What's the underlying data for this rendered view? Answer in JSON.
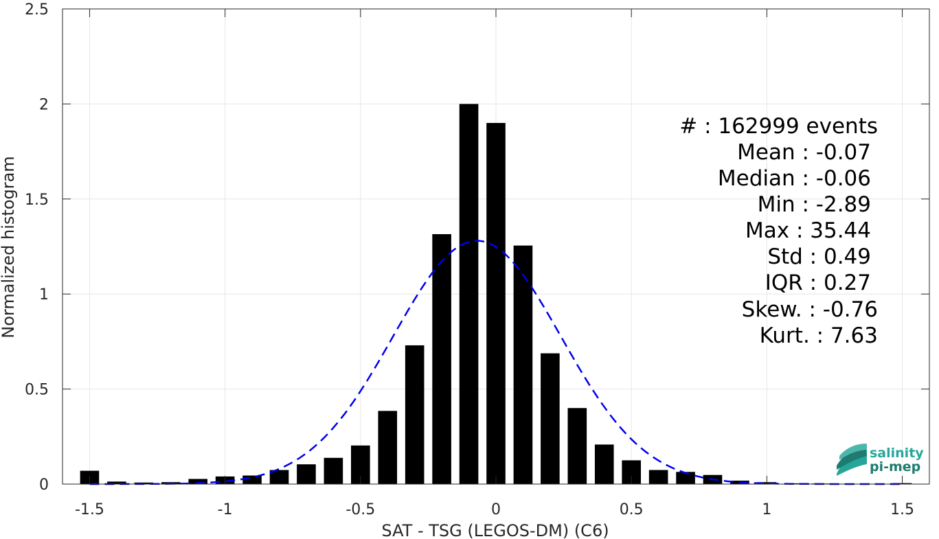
{
  "chart_data": {
    "type": "bar",
    "xlabel": "SAT - TSG (LEGOS-DM) (C6)",
    "ylabel": "Normalized histogram",
    "xlim": [
      -1.6,
      1.6
    ],
    "ylim": [
      0,
      2.5
    ],
    "xticks": [
      -1.5,
      -1,
      -0.5,
      0,
      0.5,
      1,
      1.5
    ],
    "xtick_labels": [
      "-1.5",
      "-1",
      "-0.5",
      "0",
      "0.5",
      "1",
      "1.5"
    ],
    "yticks": [
      0,
      0.5,
      1,
      1.5,
      2,
      2.5
    ],
    "ytick_labels": [
      "0",
      "0.5",
      "1",
      "1.5",
      "2",
      "2.5"
    ],
    "grid": true,
    "bar_color": "#000000",
    "bar_width": 0.07,
    "bars": {
      "x": [
        -1.5,
        -1.4,
        -1.3,
        -1.2,
        -1.1,
        -1.0,
        -0.9,
        -0.8,
        -0.7,
        -0.6,
        -0.5,
        -0.4,
        -0.3,
        -0.2,
        -0.1,
        0.0,
        0.1,
        0.2,
        0.3,
        0.4,
        0.5,
        0.6,
        0.7,
        0.8,
        0.9,
        1.0,
        1.1,
        1.2,
        1.3,
        1.4,
        1.5
      ],
      "values": [
        0.07,
        0.013,
        0.008,
        0.01,
        0.027,
        0.04,
        0.045,
        0.074,
        0.104,
        0.138,
        0.203,
        0.385,
        0.73,
        1.315,
        2.0,
        1.9,
        1.255,
        0.688,
        0.4,
        0.208,
        0.125,
        0.074,
        0.064,
        0.048,
        0.018,
        0.01,
        0.004,
        0.003,
        0.002,
        0.002,
        0.005
      ]
    },
    "fit_curve": {
      "type": "gaussian",
      "style": "dashed",
      "color": "#0000ee",
      "mean": -0.07,
      "std": 0.31,
      "peak": 1.28,
      "x_range": [
        -1.5,
        1.5
      ]
    },
    "annotation": [
      "#  : 162999 events",
      "Mean : -0.07",
      "Median : -0.06",
      "Min : -2.89",
      "Max : 35.44",
      "Std : 0.49",
      "IQR : 0.27",
      "Skew. : -0.76",
      "Kurt. : 7.63"
    ]
  },
  "logo": {
    "line1": "salinity",
    "line2": "pi-mep",
    "color1": "#26a69a",
    "color2": "#1e7b70"
  }
}
